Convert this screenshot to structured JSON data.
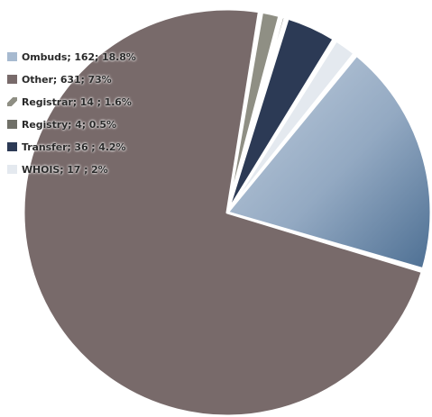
{
  "chart_data": {
    "type": "pie",
    "slices": [
      {
        "label": "Ombuds",
        "value": 162,
        "percent": 18.8,
        "legend_text": "Ombuds; 162; 18.8%",
        "color": "#9fb4cc",
        "color_dark": "#4d6f93"
      },
      {
        "label": "Other",
        "value": 631,
        "percent": 73,
        "legend_text": "Other; 631; 73%",
        "color": "#786a6a",
        "color_dark": "#786a6a"
      },
      {
        "label": "Registrar",
        "value": 14,
        "percent": 1.6,
        "legend_text": "Registrar; 14 ; 1.6%",
        "color": "#8f8f84",
        "color_dark": "#8f8f84"
      },
      {
        "label": "Registry",
        "value": 4,
        "percent": 0.5,
        "legend_text": "Registry; 4; 0.5%",
        "color": "#707068",
        "color_dark": "#707068"
      },
      {
        "label": "Transfer",
        "value": 36,
        "percent": 4.2,
        "legend_text": "Transfer; 36 ; 4.2%",
        "color": "#2c3a55",
        "color_dark": "#2c3a55"
      },
      {
        "label": "WHOIS",
        "value": 17,
        "percent": 2,
        "legend_text": "WHOIS; 17 ; 2%",
        "color": "#e4e9ef",
        "color_dark": "#e4e9ef"
      }
    ],
    "legend_position": "top-left"
  }
}
